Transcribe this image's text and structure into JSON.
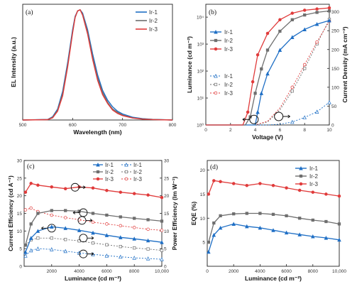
{
  "colors": {
    "ir1": "#1f6fc5",
    "ir2": "#6e6e6e",
    "ir3": "#e03b3b"
  },
  "chart_data": [
    {
      "panel_label": "(a)",
      "type": "line",
      "xlabel": "Wavelength (nm)",
      "ylabel": "EL Intensity (a.u.)",
      "xlim": [
        500,
        800
      ],
      "ylim": [
        0,
        1.05
      ],
      "xticks": [
        "500",
        "600",
        "700",
        "800"
      ],
      "legend": [
        "Ir-1",
        "Ir-2",
        "Ir-3"
      ],
      "legend_position": "top-right",
      "series": [
        {
          "name": "Ir-1",
          "x": [
            500,
            550,
            560,
            570,
            580,
            590,
            600,
            605,
            610,
            615,
            620,
            630,
            640,
            650,
            660,
            670,
            680,
            690,
            700,
            720,
            740,
            760,
            800
          ],
          "y": [
            0,
            0.005,
            0.03,
            0.1,
            0.26,
            0.52,
            0.82,
            0.94,
            0.99,
            1.0,
            0.97,
            0.82,
            0.6,
            0.41,
            0.27,
            0.18,
            0.12,
            0.08,
            0.055,
            0.025,
            0.012,
            0.006,
            0.0
          ]
        },
        {
          "name": "Ir-2",
          "x": [
            500,
            550,
            560,
            570,
            580,
            590,
            600,
            605,
            610,
            615,
            620,
            630,
            640,
            650,
            660,
            670,
            680,
            690,
            700,
            720,
            740,
            760,
            800
          ],
          "y": [
            0,
            0.004,
            0.025,
            0.09,
            0.24,
            0.5,
            0.8,
            0.93,
            0.99,
            1.0,
            0.96,
            0.8,
            0.57,
            0.38,
            0.25,
            0.16,
            0.1,
            0.07,
            0.045,
            0.02,
            0.01,
            0.005,
            0.0
          ]
        },
        {
          "name": "Ir-3",
          "x": [
            500,
            550,
            560,
            570,
            580,
            590,
            600,
            605,
            610,
            615,
            620,
            630,
            640,
            650,
            660,
            670,
            680,
            690,
            700,
            720,
            740,
            760,
            800
          ],
          "y": [
            0,
            0.003,
            0.02,
            0.08,
            0.22,
            0.48,
            0.79,
            0.93,
            0.99,
            1.0,
            0.95,
            0.78,
            0.55,
            0.36,
            0.23,
            0.15,
            0.09,
            0.06,
            0.04,
            0.018,
            0.008,
            0.004,
            0.0
          ]
        }
      ]
    },
    {
      "panel_label": "(b)",
      "type": "line",
      "xlabel": "Voltage (V)",
      "ylabel": "Luminance (cd m⁻²)",
      "ylabel_right": "Current Density (mA cm⁻²)",
      "xlim": [
        0,
        10
      ],
      "xticks": [
        "0",
        "2",
        "4",
        "6",
        "8",
        "10"
      ],
      "ylim_log": [
        1,
        30000
      ],
      "yticks_left": [
        "10⁰",
        "10¹",
        "10²",
        "10³",
        "10⁴"
      ],
      "ylim_right": [
        0,
        320
      ],
      "yticks_right": [
        "0",
        "50",
        "100",
        "150",
        "200",
        "250",
        "300"
      ],
      "legend_luminance": [
        "Ir-1",
        "Ir-2",
        "Ir-3"
      ],
      "legend_current": [
        "Ir-1",
        "Ir-2",
        "Ir-3"
      ],
      "luminance_series": [
        {
          "name": "Ir-1",
          "x": [
            0,
            3.5,
            4.0,
            4.2,
            4.5,
            5,
            6,
            7,
            8,
            9,
            10
          ],
          "y": [
            1,
            1,
            1,
            3,
            15,
            80,
            600,
            1800,
            3500,
            5500,
            7500
          ]
        },
        {
          "name": "Ir-2",
          "x": [
            0,
            3.2,
            3.6,
            4.0,
            4.5,
            5,
            6,
            7,
            8,
            9,
            10
          ],
          "y": [
            1,
            1,
            2,
            15,
            120,
            600,
            3000,
            8000,
            12000,
            15000,
            17000
          ]
        },
        {
          "name": "Ir-3",
          "x": [
            0,
            3.0,
            3.4,
            3.8,
            4.2,
            5,
            6,
            7,
            8,
            9,
            10
          ],
          "y": [
            1,
            1,
            3,
            40,
            400,
            2500,
            8000,
            14000,
            18000,
            20000,
            22000
          ]
        }
      ],
      "current_series": [
        {
          "name": "Ir-1",
          "x": [
            0,
            5,
            6,
            7,
            8,
            9,
            10
          ],
          "y": [
            0,
            0,
            2,
            8,
            20,
            35,
            60
          ]
        },
        {
          "name": "Ir-2",
          "x": [
            0,
            4,
            5,
            6,
            7,
            8,
            9,
            10
          ],
          "y": [
            0,
            0,
            8,
            40,
            90,
            150,
            215,
            280
          ]
        },
        {
          "name": "Ir-3",
          "x": [
            0,
            4,
            5,
            6,
            7,
            8,
            9,
            10
          ],
          "y": [
            0,
            0,
            10,
            45,
            100,
            160,
            220,
            275
          ]
        }
      ]
    },
    {
      "panel_label": "(c)",
      "type": "line",
      "xlabel": "Luminance (cd m⁻²)",
      "ylabel": "Current Efficiency (cd A⁻¹)",
      "ylabel_right": "Power Efficiency (lm W⁻¹)",
      "xlim": [
        0,
        10000
      ],
      "xticks": [
        "2000",
        "4000",
        "6000",
        "8000",
        "10,000"
      ],
      "ylim": [
        0,
        30
      ],
      "yticks_left": [
        "0",
        "5",
        "10",
        "15",
        "20",
        "25",
        "30"
      ],
      "ylim_right": [
        0,
        30
      ],
      "yticks_right": [
        "0",
        "5",
        "10",
        "15",
        "20",
        "25",
        "30"
      ],
      "legend": [
        "Ir-1",
        "Ir-2",
        "Ir-3"
      ],
      "ce_series": [
        {
          "name": "Ir-1",
          "x": [
            100,
            500,
            1000,
            2000,
            3000,
            4000,
            5000,
            6000,
            7000,
            8000,
            9000,
            10000
          ],
          "y": [
            4,
            8,
            10,
            11.2,
            10.8,
            10.2,
            9.5,
            8.8,
            8.2,
            7.8,
            7.3,
            6.8
          ]
        },
        {
          "name": "Ir-2",
          "x": [
            100,
            500,
            1000,
            2000,
            3000,
            4000,
            5000,
            6000,
            7000,
            8000,
            9000,
            10000
          ],
          "y": [
            6,
            12,
            15,
            15.8,
            15.8,
            15.6,
            15,
            14.5,
            14,
            13.6,
            13.2,
            12.8
          ]
        },
        {
          "name": "Ir-3",
          "x": [
            100,
            500,
            1000,
            2000,
            3000,
            4000,
            5000,
            6000,
            7000,
            8000,
            9000,
            10000
          ],
          "y": [
            21,
            23.5,
            23,
            22.5,
            22,
            22.5,
            22.2,
            21.5,
            21,
            20.6,
            20.2,
            19.5
          ]
        }
      ],
      "pe_series": [
        {
          "name": "Ir-1",
          "x": [
            100,
            500,
            1000,
            2000,
            3000,
            4000,
            5000,
            6000,
            7000,
            8000,
            9000,
            10000
          ],
          "y": [
            3,
            4.5,
            5,
            4.8,
            4.3,
            3.8,
            3.4,
            3.0,
            2.7,
            2.4,
            2.2,
            2.0
          ]
        },
        {
          "name": "Ir-2",
          "x": [
            100,
            500,
            1000,
            2000,
            3000,
            4000,
            5000,
            6000,
            7000,
            8000,
            9000,
            10000
          ],
          "y": [
            6,
            7.5,
            8,
            8,
            7.6,
            7.2,
            6.6,
            6.1,
            5.6,
            5.2,
            4.9,
            4.5
          ]
        },
        {
          "name": "Ir-3",
          "x": [
            100,
            500,
            1000,
            2000,
            3000,
            4000,
            5000,
            6000,
            7000,
            8000,
            9000,
            10000
          ],
          "y": [
            16,
            16.5,
            15.5,
            14.5,
            13.8,
            13.2,
            12.5,
            12,
            11.5,
            11,
            10.5,
            10.2
          ]
        }
      ]
    },
    {
      "panel_label": "(d)",
      "type": "line",
      "xlabel": "Luminance (cd m⁻²)",
      "ylabel": "EQE (%)",
      "xlim": [
        0,
        10000
      ],
      "xticks": [
        "0",
        "2000",
        "4000",
        "6000",
        "8000",
        "10,000"
      ],
      "ylim": [
        0,
        22
      ],
      "yticks_left": [
        "5",
        "10",
        "15",
        "20"
      ],
      "legend": [
        "Ir-1",
        "Ir-2",
        "Ir-3"
      ],
      "legend_position": "top-right",
      "series": [
        {
          "name": "Ir-1",
          "x": [
            100,
            500,
            1000,
            2000,
            3000,
            4000,
            5000,
            6000,
            7000,
            8000,
            9000,
            10000
          ],
          "y": [
            3,
            6.5,
            8,
            8.8,
            8.3,
            8,
            7.5,
            7,
            6.6,
            6.2,
            5.9,
            5.5
          ]
        },
        {
          "name": "Ir-2",
          "x": [
            100,
            500,
            1000,
            2000,
            3000,
            4000,
            5000,
            6000,
            7000,
            8000,
            9000,
            10000
          ],
          "y": [
            5,
            9,
            10.5,
            10.9,
            11,
            11,
            10.8,
            10.5,
            10,
            9.6,
            9.3,
            8.8
          ]
        },
        {
          "name": "Ir-3",
          "x": [
            100,
            500,
            1000,
            2000,
            3000,
            4000,
            5000,
            6000,
            7000,
            8000,
            9000,
            10000
          ],
          "y": [
            15,
            17.8,
            17.6,
            17.2,
            16.8,
            17.2,
            16.8,
            16.3,
            15.8,
            15.4,
            15,
            14.6
          ]
        }
      ]
    }
  ]
}
